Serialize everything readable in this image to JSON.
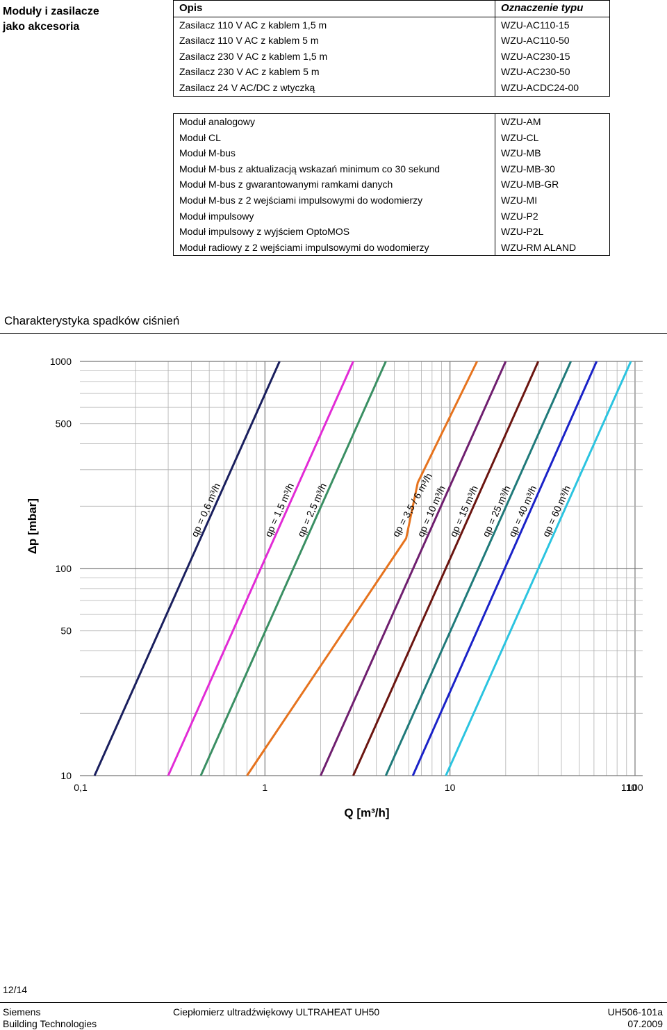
{
  "side_title": [
    "Moduły i zasilacze",
    "jako akcesoria"
  ],
  "power_table": {
    "headers": [
      "Opis",
      "Oznaczenie typu"
    ],
    "rows": [
      [
        "Zasilacz 110 V AC z kablem 1,5 m",
        "WZU-AC110-15"
      ],
      [
        "Zasilacz 110 V AC z kablem 5 m",
        "WZU-AC110-50"
      ],
      [
        "Zasilacz 230 V AC z kablem 1,5 m",
        "WZU-AC230-15"
      ],
      [
        "Zasilacz 230 V AC z kablem 5 m",
        "WZU-AC230-50"
      ],
      [
        "Zasilacz 24 V AC/DC z wtyczką",
        "WZU-ACDC24-00"
      ]
    ]
  },
  "module_table": {
    "rows": [
      [
        "Moduł analogowy",
        "WZU-AM"
      ],
      [
        "Moduł CL",
        "WZU-CL"
      ],
      [
        "Moduł M-bus",
        "WZU-MB"
      ],
      [
        "Moduł M-bus z aktualizacją wskazań minimum co 30 sekund",
        "WZU-MB-30"
      ],
      [
        "Moduł M-bus z gwarantowanymi ramkami danych",
        "WZU-MB-GR"
      ],
      [
        "Moduł M-bus z 2 wejściami impulsowymi do wodomierzy",
        "WZU-MI"
      ],
      [
        "Moduł impulsowy",
        "WZU-P2"
      ],
      [
        "Moduł impulsowy z wyjściem OptoMOS",
        "WZU-P2L"
      ],
      [
        "Moduł radiowy z 2 wejściami impulsowymi do wodomierzy",
        "WZU-RM ALAND"
      ]
    ]
  },
  "section_title": "Charakterystyka spadków ciśnień",
  "chart_data": {
    "type": "line",
    "x_scale": "log",
    "y_scale": "log",
    "xlim": [
      0.1,
      110
    ],
    "ylim": [
      10,
      1000
    ],
    "xlabel": "Q  [m³/h]",
    "ylabel": "Δp  [mbar]",
    "x_ticks": [
      "0,1",
      "1",
      "10",
      "100",
      "110"
    ],
    "y_ticks": [
      "1000",
      "500",
      "100",
      "50",
      "10"
    ],
    "grid": true,
    "series": [
      {
        "name": "qp = 0,6 m³/h",
        "color": "#1a1f5e",
        "points": [
          [
            0.12,
            10
          ],
          [
            1.2,
            1000
          ]
        ]
      },
      {
        "name": "qp = 1,5 m³/h",
        "color": "#e22bd6",
        "points": [
          [
            0.3,
            10
          ],
          [
            3.0,
            1000
          ]
        ]
      },
      {
        "name": "qp = 2,5 m³/h",
        "color": "#3a8f63",
        "points": [
          [
            0.45,
            10
          ],
          [
            4.5,
            1000
          ]
        ]
      },
      {
        "name": "qp = 3,5 / 6 m³/h",
        "color": "#e6731e",
        "points": [
          [
            0.8,
            10
          ],
          [
            5.8,
            140
          ],
          [
            6.7,
            260
          ],
          [
            14.0,
            1000
          ]
        ]
      },
      {
        "name": "qp = 10 m³/h",
        "color": "#6f1f6f",
        "points": [
          [
            2.0,
            10
          ],
          [
            20.0,
            1000
          ]
        ]
      },
      {
        "name": "qp = 15 m³/h",
        "color": "#6b1510",
        "points": [
          [
            3.0,
            10
          ],
          [
            30.0,
            1000
          ]
        ]
      },
      {
        "name": "qp = 25 m³/h",
        "color": "#1f7a7a",
        "points": [
          [
            4.5,
            10
          ],
          [
            45.0,
            1000
          ]
        ]
      },
      {
        "name": "qp = 40 m³/h",
        "color": "#1a22c8",
        "points": [
          [
            6.3,
            10
          ],
          [
            62.0,
            1000
          ]
        ]
      },
      {
        "name": "qp = 60 m³/h",
        "color": "#2bc4e0",
        "points": [
          [
            9.5,
            10
          ],
          [
            95.0,
            1000
          ]
        ]
      }
    ]
  },
  "footer": {
    "page_number": "12/14",
    "company": "Siemens",
    "division": "Building Technologies",
    "product": "Ciepłomierz ultradźwiękowy ULTRAHEAT UH50",
    "doc_id": "UH506-101a",
    "date": "07.2009"
  }
}
